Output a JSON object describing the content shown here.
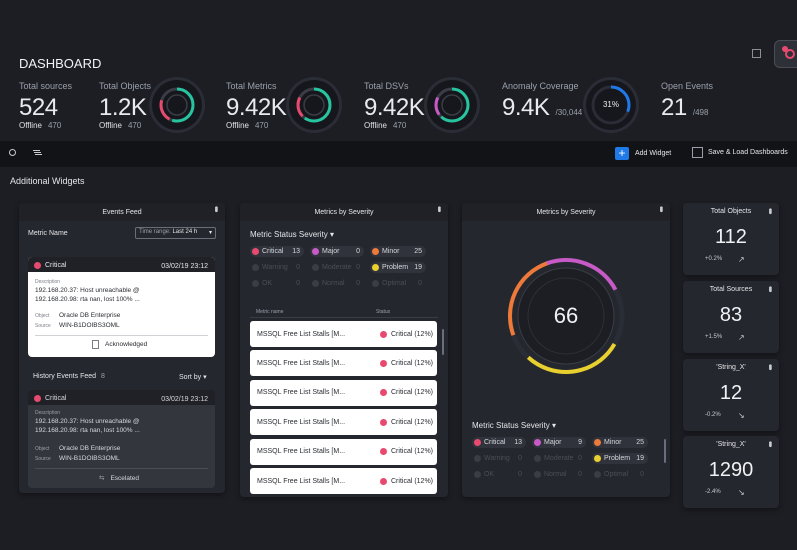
{
  "page": {
    "title": "DASHBOARD"
  },
  "kpis": {
    "sources": {
      "label": "Total sources",
      "value": "524",
      "offline_label": "Offline",
      "offline": "470"
    },
    "objects": {
      "label": "Total Objects",
      "value": "1.2K",
      "offline_label": "Offline",
      "offline": "470"
    },
    "metrics": {
      "label": "Total Metrics",
      "value": "9.42K",
      "offline_label": "Offline",
      "offline": "470"
    },
    "dsvs": {
      "label": "Total DSVs",
      "value": "9.42K",
      "offline_label": "Offline",
      "offline": "470"
    },
    "anomaly": {
      "label": "Anomaly Coverage",
      "value": "9.4K",
      "total": "/30,044",
      "percent": "31%",
      "fraction": 0.31
    },
    "events": {
      "label": "Open Events",
      "value": "21",
      "total": "/498"
    }
  },
  "toolbar": {
    "add_widget": "Add Widget",
    "save_load": "Save & Load Dashboards"
  },
  "section": {
    "title": "Additional Widgets"
  },
  "events_feed": {
    "title": "Events Feed",
    "metric_name_label": "Metric Name",
    "time_range_label": "Time range:",
    "time_range_value": "Last 24 h",
    "event1": {
      "severity": "Critical",
      "date": "03/02/19 23:12",
      "desc_label": "Description",
      "desc": "192.168.20.37: Host unreachable @ 192.168.20.98: rta nan, lost 100% ...",
      "object_label": "Object",
      "object": "Oracle DB Enterprise",
      "source_label": "Source",
      "source": "WIN-B1DOIBS3OML",
      "action": "Acknowledged"
    },
    "history_label": "History Events Feed",
    "history_count": "8",
    "sort_label": "Sort by",
    "event2": {
      "severity": "Critical",
      "date": "03/02/19 23:12",
      "desc_label": "Description",
      "desc": "192.168.20.37: Host unreachable @ 192.168.20.98: rta nan, lost 100% ...",
      "object_label": "Object",
      "object": "Oracle DB Enterprise",
      "source_label": "Source",
      "source": "WIN-B1DOIBS3OML",
      "action": "Escelated"
    }
  },
  "severity_widget1": {
    "title": "Metrics by Severity",
    "subtitle": "Metric Status Severity",
    "chips": [
      {
        "label": "Critical",
        "count": "13",
        "color": "#e84a6f"
      },
      {
        "label": "Major",
        "count": "0",
        "color": "#c85ac8"
      },
      {
        "label": "Minor",
        "count": "25",
        "color": "#ee7a3a"
      },
      {
        "label": "Warning",
        "count": "0"
      },
      {
        "label": "Moderate",
        "count": "0"
      },
      {
        "label": "Problem",
        "count": "19",
        "color": "#e8d02e"
      },
      {
        "label": "OK",
        "count": "0"
      },
      {
        "label": "Normal",
        "count": "0"
      },
      {
        "label": "Optimal",
        "count": "0"
      }
    ],
    "col_metric": "Metric name",
    "col_status": "Status",
    "rows": [
      {
        "name": "MSSQL Free List Stalls [M...",
        "status": "Critical (12%)"
      },
      {
        "name": "MSSQL Free List Stalls [M...",
        "status": "Critical (12%)"
      },
      {
        "name": "MSSQL Free List Stalls [M...",
        "status": "Critical (12%)"
      },
      {
        "name": "MSSQL Free List Stalls [M...",
        "status": "Critical (12%)"
      },
      {
        "name": "MSSQL Free List Stalls [M...",
        "status": "Critical (12%)"
      },
      {
        "name": "MSSQL Free List Stalls [M...",
        "status": "Critical (12%)"
      }
    ]
  },
  "severity_widget2": {
    "title": "Metrics by Severity",
    "gauge_value": "66",
    "subtitle": "Metric Status Severity",
    "chips": [
      {
        "label": "Critical",
        "count": "13",
        "color": "#e84a6f"
      },
      {
        "label": "Major",
        "count": "9",
        "color": "#c85ac8"
      },
      {
        "label": "Minor",
        "count": "25",
        "color": "#ee7a3a"
      },
      {
        "label": "Warning",
        "count": "0"
      },
      {
        "label": "Moderate",
        "count": "0"
      },
      {
        "label": "Problem",
        "count": "19",
        "color": "#e8d02e"
      },
      {
        "label": "OK",
        "count": "0"
      },
      {
        "label": "Normal",
        "count": "0"
      },
      {
        "label": "Optimal",
        "count": "0"
      }
    ]
  },
  "minis": [
    {
      "title": "Total Objects",
      "value": "112",
      "pct": "+0.2%",
      "trend": "up"
    },
    {
      "title": "Total Sources",
      "value": "83",
      "pct": "+1.5%",
      "trend": "up"
    },
    {
      "title": "'String_X'",
      "value": "12",
      "pct": "-0.2%",
      "trend": "down"
    },
    {
      "title": "'String_X'",
      "value": "1290",
      "pct": "-2.4%",
      "trend": "down"
    }
  ],
  "colors": {
    "accent": "#1f7ae8",
    "critical": "#e84a6f",
    "teal": "#27c4a0",
    "bg": "#1c1e24"
  }
}
